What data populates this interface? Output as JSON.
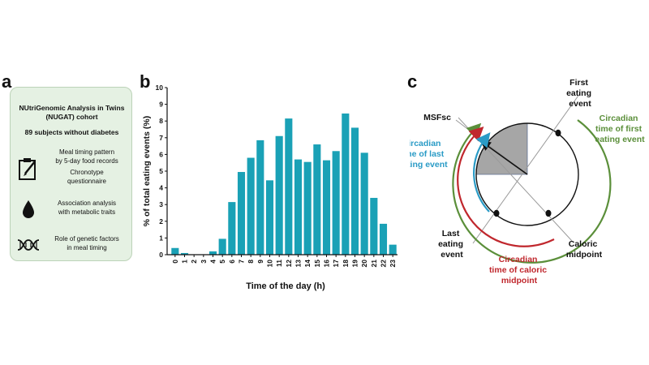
{
  "panel_a": {
    "letter": "a",
    "cohort_line1": "NUtriGenomic Analysis in Twins",
    "cohort_line2": "(NUGAT) cohort",
    "subjects": "89 subjects without diabetes",
    "items": [
      {
        "icon": "clipboard-pen-icon",
        "lines": [
          "Meal timing pattern",
          "by 5-day food records",
          "Chronotype",
          "questionnaire"
        ]
      },
      {
        "icon": "drop-icon",
        "lines": [
          "Association analysis",
          "with metabolic traits"
        ]
      },
      {
        "icon": "dna-icon",
        "lines": [
          "Role of genetic factors",
          "in meal timing"
        ]
      }
    ]
  },
  "panel_b": {
    "letter": "b"
  },
  "panel_c": {
    "letter": "c",
    "labels": {
      "first_eating_event": [
        "First",
        "eating",
        "event"
      ],
      "msfsc": "MSFsc",
      "circ_last": [
        "Circadian",
        "time of last",
        "eating event"
      ],
      "circ_first": [
        "Circadian",
        "time of first",
        "eating event"
      ],
      "last_eating_event": [
        "Last",
        "eating",
        "event"
      ],
      "caloric_midpoint": [
        "Caloric",
        "midpoint"
      ],
      "circ_caloric": [
        "Circadian",
        "time of caloric",
        "midpoint"
      ]
    },
    "colors": {
      "green": "#5b8f3a",
      "red": "#c0272d",
      "blue": "#2a9bc6",
      "sector": "#a6a6a6"
    }
  },
  "chart_data": {
    "type": "bar",
    "categories": [
      "0",
      "1",
      "2",
      "3",
      "4",
      "5",
      "6",
      "7",
      "8",
      "9",
      "10",
      "11",
      "12",
      "13",
      "14",
      "15",
      "16",
      "17",
      "18",
      "19",
      "20",
      "21",
      "22",
      "23"
    ],
    "values": [
      0.4,
      0.1,
      0.0,
      0.0,
      0.2,
      0.95,
      3.15,
      4.95,
      5.8,
      6.85,
      4.45,
      7.1,
      8.15,
      5.7,
      5.55,
      6.6,
      5.65,
      6.2,
      8.45,
      7.6,
      6.1,
      3.4,
      1.85,
      0.6
    ],
    "xlabel": "Time of the day (h)",
    "ylabel": "% of total eating events (%)",
    "ylim": [
      0,
      10
    ],
    "yticks": [
      "0",
      "1",
      "2",
      "3",
      "4",
      "5",
      "6",
      "7",
      "8",
      "9",
      "10"
    ],
    "bar_color": "#1aa1b6",
    "grid": false
  }
}
